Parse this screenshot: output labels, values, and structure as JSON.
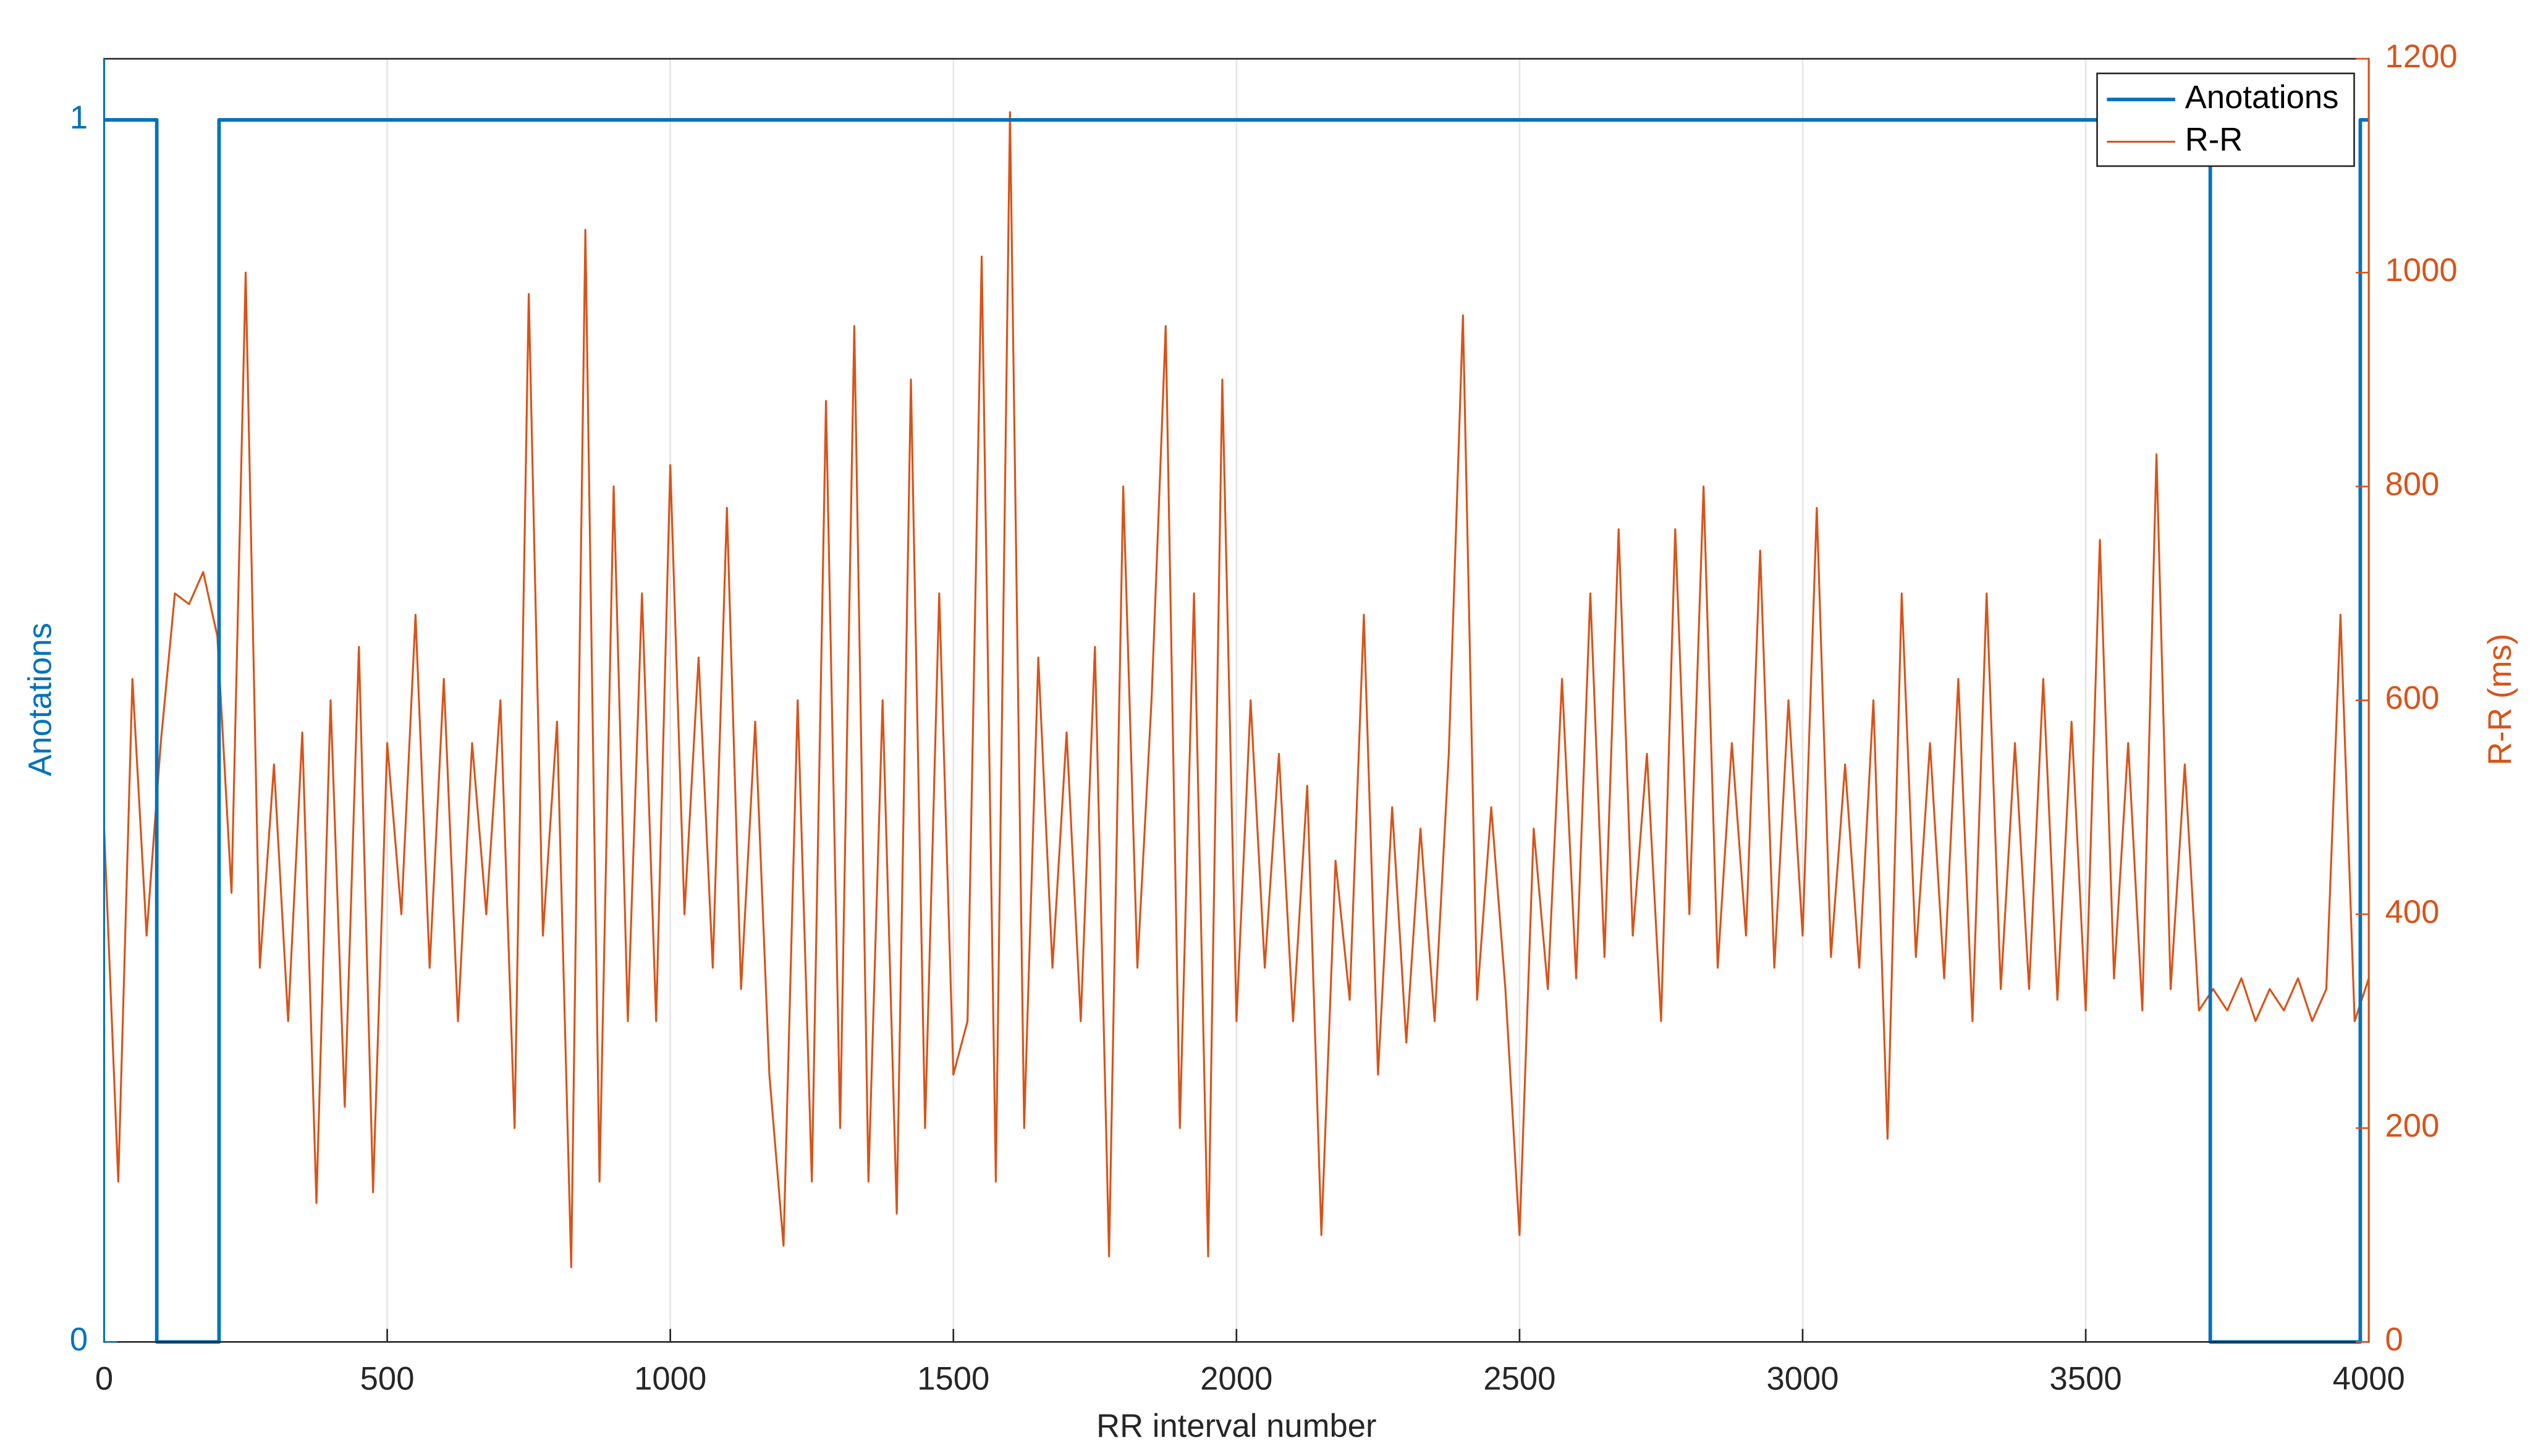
{
  "chart_data": {
    "type": "line",
    "xlabel": "RR interval number",
    "ylabel": "Anotations",
    "y2label": "R-R (ms)",
    "xlim": [
      0,
      4000
    ],
    "xticks": [
      0,
      500,
      1000,
      1500,
      2000,
      2500,
      3000,
      3500,
      4000
    ],
    "ylim": [
      0,
      1.05
    ],
    "yticks": [
      0,
      1
    ],
    "y2lim": [
      0,
      1200
    ],
    "y2ticks": [
      0,
      200,
      400,
      600,
      800,
      1000,
      1200
    ],
    "grid": "x",
    "legend": "top-right",
    "series": [
      {
        "name": "Anotations",
        "color": "#0072bd",
        "axis": "y",
        "x": [
          0,
          93,
          93,
          203,
          203,
          3720,
          3720,
          3985,
          3985,
          4000
        ],
        "values": [
          1,
          1,
          0,
          0,
          1,
          1,
          0,
          0,
          1,
          1
        ]
      },
      {
        "name": "R-R",
        "color": "#d95319",
        "axis": "y2",
        "x": [
          0,
          25,
          50,
          75,
          100,
          125,
          150,
          175,
          200,
          225,
          250,
          275,
          300,
          325,
          350,
          375,
          400,
          425,
          450,
          475,
          500,
          525,
          550,
          575,
          600,
          625,
          650,
          675,
          700,
          725,
          750,
          775,
          800,
          825,
          850,
          875,
          900,
          925,
          950,
          975,
          1000,
          1025,
          1050,
          1075,
          1100,
          1125,
          1150,
          1175,
          1200,
          1225,
          1250,
          1275,
          1300,
          1325,
          1350,
          1375,
          1400,
          1425,
          1450,
          1475,
          1500,
          1525,
          1550,
          1575,
          1600,
          1625,
          1650,
          1675,
          1700,
          1725,
          1750,
          1775,
          1800,
          1825,
          1850,
          1875,
          1900,
          1925,
          1950,
          1975,
          2000,
          2025,
          2050,
          2075,
          2100,
          2125,
          2150,
          2175,
          2200,
          2225,
          2250,
          2275,
          2300,
          2325,
          2350,
          2375,
          2400,
          2425,
          2450,
          2475,
          2500,
          2525,
          2550,
          2575,
          2600,
          2625,
          2650,
          2675,
          2700,
          2725,
          2750,
          2775,
          2800,
          2825,
          2850,
          2875,
          2900,
          2925,
          2950,
          2975,
          3000,
          3025,
          3050,
          3075,
          3100,
          3125,
          3150,
          3175,
          3200,
          3225,
          3250,
          3275,
          3300,
          3325,
          3350,
          3375,
          3400,
          3425,
          3450,
          3475,
          3500,
          3525,
          3550,
          3575,
          3600,
          3625,
          3650,
          3675,
          3700,
          3725,
          3750,
          3775,
          3800,
          3825,
          3850,
          3875,
          3900,
          3925,
          3950,
          3975,
          4000
        ],
        "values": [
          480,
          150,
          620,
          380,
          560,
          700,
          690,
          720,
          660,
          420,
          1000,
          350,
          540,
          300,
          570,
          130,
          600,
          220,
          650,
          140,
          560,
          400,
          680,
          350,
          620,
          300,
          560,
          400,
          600,
          200,
          980,
          380,
          580,
          70,
          1040,
          150,
          800,
          300,
          700,
          300,
          820,
          400,
          640,
          350,
          780,
          330,
          580,
          250,
          90,
          600,
          150,
          880,
          200,
          950,
          150,
          600,
          120,
          900,
          200,
          700,
          250,
          300,
          1015,
          150,
          1150,
          200,
          640,
          350,
          570,
          300,
          650,
          80,
          800,
          350,
          600,
          950,
          200,
          700,
          80,
          900,
          300,
          600,
          350,
          550,
          300,
          520,
          100,
          450,
          320,
          680,
          250,
          500,
          280,
          480,
          300,
          550,
          960,
          320,
          500,
          330,
          100,
          480,
          330,
          620,
          340,
          700,
          360,
          760,
          380,
          550,
          300,
          760,
          400,
          800,
          350,
          560,
          380,
          740,
          350,
          600,
          380,
          780,
          360,
          540,
          350,
          600,
          190,
          700,
          360,
          560,
          340,
          620,
          300,
          700,
          330,
          560,
          330,
          620,
          320,
          580,
          310,
          750,
          340,
          560,
          310,
          830,
          330,
          540,
          310,
          330,
          310,
          340,
          300,
          330,
          310,
          340,
          300,
          330,
          680,
          300,
          340
        ]
      }
    ]
  }
}
